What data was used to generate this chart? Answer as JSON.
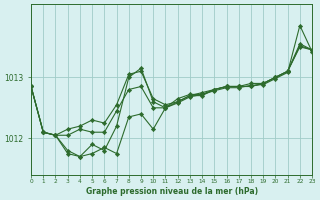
{
  "xlabel": "Graphe pression niveau de la mer (hPa)",
  "background_color": "#d8f0f0",
  "grid_color": "#a0ccc8",
  "line_color": "#2d6b2d",
  "marker_color": "#2d6b2d",
  "xlim": [
    0,
    23
  ],
  "ylim": [
    1011.4,
    1014.2
  ],
  "yticks": [
    1012,
    1013
  ],
  "xticks": [
    0,
    1,
    2,
    3,
    4,
    5,
    6,
    7,
    8,
    9,
    10,
    11,
    12,
    13,
    14,
    15,
    16,
    17,
    18,
    19,
    20,
    21,
    22,
    23
  ],
  "series": [
    [
      1012.85,
      1012.1,
      1012.05,
      1012.15,
      1012.2,
      1012.3,
      1012.25,
      1012.55,
      1013.05,
      1013.1,
      1012.65,
      1012.55,
      1012.6,
      1012.7,
      1012.75,
      1012.8,
      1012.85,
      1012.85,
      1012.9,
      1012.9,
      1013.0,
      1013.1,
      1013.5,
      1013.45
    ],
    [
      1012.85,
      1012.1,
      1012.05,
      1011.75,
      1011.7,
      1011.75,
      1011.85,
      1011.75,
      1012.35,
      1012.4,
      1012.15,
      1012.5,
      1012.6,
      1012.7,
      1012.7,
      1012.8,
      1012.85,
      1012.85,
      1012.85,
      1012.9,
      1013.0,
      1013.1,
      1013.55,
      1013.45
    ],
    [
      1012.85,
      1012.1,
      1012.05,
      1011.8,
      1011.7,
      1011.9,
      1011.8,
      1012.2,
      1013.0,
      1013.15,
      1012.6,
      1012.5,
      1012.65,
      1012.72,
      1012.72,
      1012.8,
      1012.85,
      1012.85,
      1012.85,
      1012.9,
      1013.0,
      1013.1,
      1013.52,
      1013.45
    ],
    [
      1012.85,
      1012.1,
      1012.05,
      1012.05,
      1012.15,
      1012.1,
      1012.1,
      1012.45,
      1012.8,
      1012.85,
      1012.5,
      1012.5,
      1012.58,
      1012.68,
      1012.72,
      1012.78,
      1012.83,
      1012.83,
      1012.87,
      1012.88,
      1012.98,
      1013.08,
      1013.85,
      1013.42
    ]
  ]
}
